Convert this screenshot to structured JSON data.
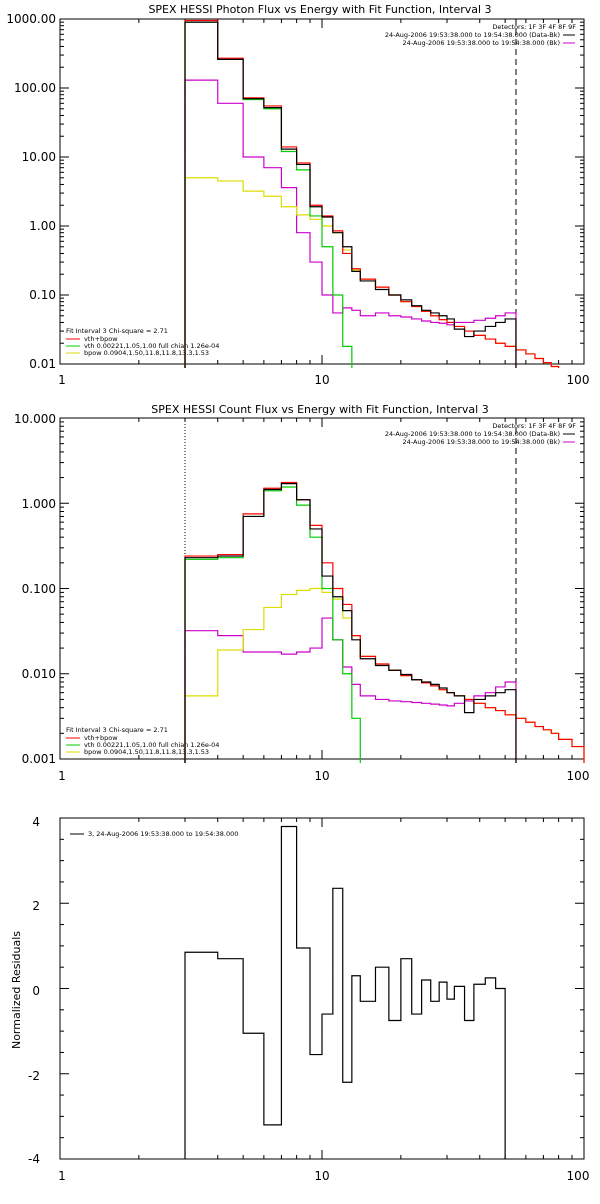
{
  "chart_data": [
    {
      "type": "line",
      "title": "SPEX HESSI Photon Flux vs Energy with Fit Function, Interval 3",
      "x_scale": "log",
      "y_scale": "log",
      "xlim": [
        1,
        100
      ],
      "ylim": [
        0.01,
        1000
      ],
      "x_ticks": [
        "1",
        "10",
        "100"
      ],
      "y_ticks": [
        "0.01",
        "0.10",
        "1.00",
        "10.00",
        "100.00",
        "1000.00"
      ],
      "detectors_label": "Detectors: 1F 3F 4F 8F 9F",
      "legend_top": [
        {
          "text": "24-Aug-2006 19:53:38.000 to 19:54:38.000 (Data-Bk)",
          "color": "#000000"
        },
        {
          "text": "24-Aug-2006 19:53:38.000 to 19:54:38.000 (Bk)",
          "color": "#cc00cc"
        }
      ],
      "legend_bottom": [
        {
          "text": "Fit Interval 3   Chi-square = 2.71",
          "color": null
        },
        {
          "text": "vth+bpow",
          "color": "#ff0000"
        },
        {
          "text": "vth 0.00221,1.05,1.00  full chian 1.26e-04",
          "color": "#00cc00"
        },
        {
          "text": "bpow 0.0904,1.50,11.8,11.8,13.3,1.53",
          "color": "#dddd00"
        }
      ],
      "marker_lines": [
        {
          "x": 3,
          "style": "dotted"
        },
        {
          "x": 55,
          "style": "dashed"
        }
      ],
      "bin_edges": [
        3,
        4,
        5,
        6,
        7,
        8,
        9,
        10,
        11,
        12,
        13,
        14,
        16,
        18,
        20,
        22,
        24,
        26,
        28,
        30,
        32,
        35,
        38,
        42,
        46,
        50,
        55,
        60,
        65,
        70,
        75,
        80
      ],
      "series": [
        {
          "name": "Data-Bk",
          "color": "#000000",
          "values": [
            900,
            260,
            70,
            52,
            13,
            7.8,
            1.9,
            1.35,
            0.8,
            0.5,
            0.22,
            0.16,
            0.12,
            0.1,
            0.085,
            0.07,
            0.06,
            0.055,
            0.05,
            0.045,
            0.032,
            0.025,
            0.03,
            0.035,
            0.04,
            0.045
          ]
        },
        {
          "name": "vth+bpow",
          "color": "#ff0000",
          "values": [
            950,
            270,
            72,
            55,
            14,
            8.2,
            2.0,
            1.4,
            0.85,
            0.4,
            0.24,
            0.17,
            0.13,
            0.1,
            0.08,
            0.068,
            0.058,
            0.05,
            0.044,
            0.04,
            0.035,
            0.03,
            0.026,
            0.023,
            0.02,
            0.018,
            0.016,
            0.014,
            0.012,
            0.0105,
            0.0092
          ]
        },
        {
          "name": "vth",
          "color": "#00cc00",
          "values": [
            900,
            260,
            68,
            50,
            12,
            6.5,
            1.4,
            0.5,
            0.1,
            0.018
          ]
        },
        {
          "name": "bpow",
          "color": "#dddd00",
          "values": [
            5,
            4.5,
            3.2,
            2.7,
            1.9,
            1.45,
            1.25,
            1.0,
            0.8,
            0.45,
            0.23,
            0.17,
            0.13,
            0.1,
            0.08,
            0.068,
            0.058,
            0.05,
            0.044,
            0.04,
            0.035,
            0.03,
            0.026,
            0.023,
            0.02,
            0.018,
            0.016,
            0.014,
            0.012,
            0.0105,
            0.0092
          ]
        },
        {
          "name": "Bk",
          "color": "#cc00cc",
          "values": [
            130,
            60,
            10,
            7,
            3.6,
            0.8,
            0.3,
            0.1,
            0.055,
            0.065,
            0.06,
            0.05,
            0.055,
            0.05,
            0.048,
            0.045,
            0.042,
            0.04,
            0.039,
            0.037,
            0.04,
            0.04,
            0.043,
            0.046,
            0.05,
            0.055
          ]
        }
      ]
    },
    {
      "type": "line",
      "title": "SPEX HESSI Count Flux vs Energy with Fit Function, Interval 3",
      "x_scale": "log",
      "y_scale": "log",
      "xlim": [
        1,
        100
      ],
      "ylim": [
        0.001,
        10
      ],
      "x_ticks": [
        "1",
        "10",
        "100"
      ],
      "y_ticks": [
        "0.001",
        "0.010",
        "0.100",
        "1.000",
        "10.000"
      ],
      "detectors_label": "Detectors: 1F 3F 4F 8F 9F",
      "legend_top": [
        {
          "text": "24-Aug-2006 19:53:38.000 to 19:54:38.000 (Data-Bk)",
          "color": "#000000"
        },
        {
          "text": "24-Aug-2006 19:53:38.000 to 19:54:38.000 (Bk)",
          "color": "#cc00cc"
        }
      ],
      "legend_bottom": [
        {
          "text": "Fit Interval 3   Chi-square = 2.71",
          "color": null
        },
        {
          "text": "vth+bpow",
          "color": "#ff0000"
        },
        {
          "text": "vth 0.00221,1.05,1.00  full chian 1.26e-04",
          "color": "#00cc00"
        },
        {
          "text": "bpow 0.0904,1.50,11.8,11.8,13.3,1.53",
          "color": "#dddd00"
        }
      ],
      "marker_lines": [
        {
          "x": 3,
          "style": "dotted"
        },
        {
          "x": 55,
          "style": "dashed"
        }
      ],
      "bin_edges": [
        3,
        4,
        5,
        6,
        7,
        8,
        9,
        10,
        11,
        12,
        13,
        14,
        16,
        18,
        20,
        22,
        24,
        26,
        28,
        30,
        32,
        35,
        38,
        42,
        46,
        50,
        55,
        60,
        65,
        70,
        75,
        80,
        90,
        100
      ],
      "series": [
        {
          "name": "Data-Bk",
          "color": "#000000",
          "values": [
            0.23,
            0.24,
            0.7,
            1.45,
            1.7,
            1.1,
            0.5,
            0.14,
            0.08,
            0.055,
            0.025,
            0.015,
            0.0125,
            0.011,
            0.0098,
            0.0085,
            0.008,
            0.0075,
            0.0068,
            0.006,
            0.0055,
            0.0035,
            0.005,
            0.0055,
            0.006,
            0.0065
          ]
        },
        {
          "name": "vth+bpow",
          "color": "#ff0000",
          "values": [
            0.24,
            0.25,
            0.75,
            1.5,
            1.75,
            1.1,
            0.55,
            0.2,
            0.1,
            0.065,
            0.028,
            0.016,
            0.013,
            0.011,
            0.0095,
            0.0085,
            0.0078,
            0.0072,
            0.0065,
            0.006,
            0.0055,
            0.005,
            0.0045,
            0.004,
            0.0037,
            0.0033,
            0.003,
            0.0027,
            0.0024,
            0.0022,
            0.002,
            0.0017,
            0.0014
          ]
        },
        {
          "name": "vth",
          "color": "#00cc00",
          "values": [
            0.22,
            0.23,
            0.7,
            1.4,
            1.55,
            0.95,
            0.4,
            0.1,
            0.025,
            0.01,
            0.003
          ]
        },
        {
          "name": "bpow",
          "color": "#dddd00",
          "values": [
            0.0055,
            0.019,
            0.033,
            0.06,
            0.085,
            0.095,
            0.1,
            0.09,
            0.075,
            0.045,
            0.028,
            0.016,
            0.013,
            0.011,
            0.0095,
            0.0085,
            0.0078,
            0.0072,
            0.0065,
            0.006,
            0.0055,
            0.005,
            0.0045,
            0.004,
            0.0037,
            0.0033,
            0.003,
            0.0027,
            0.0024,
            0.0022,
            0.002,
            0.0017,
            0.0014
          ]
        },
        {
          "name": "Bk",
          "color": "#cc00cc",
          "values": [
            0.032,
            0.028,
            0.018,
            0.018,
            0.017,
            0.018,
            0.02,
            0.045,
            0.025,
            0.012,
            0.0075,
            0.0055,
            0.005,
            0.0048,
            0.0047,
            0.0046,
            0.0045,
            0.0044,
            0.0043,
            0.0042,
            0.0045,
            0.0048,
            0.0055,
            0.006,
            0.007,
            0.008
          ]
        }
      ]
    },
    {
      "type": "line",
      "title": "",
      "ylabel": "Normalized Residuals",
      "x_scale": "log",
      "y_scale": "linear",
      "xlim": [
        1,
        100
      ],
      "ylim": [
        -4,
        4
      ],
      "x_ticks": [
        "1",
        "10",
        "100"
      ],
      "y_ticks": [
        "-4",
        "-2",
        "0",
        "2",
        "4"
      ],
      "legend": [
        {
          "text": "3, 24-Aug-2006 19:53:38.000 to 19:54:38.000",
          "color": "#000000"
        }
      ],
      "bin_edges": [
        3,
        4,
        5,
        6,
        7,
        8,
        9,
        10,
        11,
        12,
        13,
        14,
        16,
        18,
        20,
        22,
        24,
        26,
        28,
        30,
        32,
        35,
        38,
        42,
        46,
        50,
        55
      ],
      "series": [
        {
          "name": "",
          "color": "#000000",
          "values": [
            0.85,
            0.7,
            -1.05,
            -3.2,
            3.8,
            0.95,
            -1.55,
            -0.6,
            2.35,
            -2.2,
            0.3,
            -0.3,
            0.5,
            -0.75,
            0.7,
            -0.6,
            0.2,
            -0.3,
            0.15,
            -0.25,
            0.05,
            -0.75,
            0.1,
            0.25,
            0.0
          ]
        }
      ]
    }
  ]
}
